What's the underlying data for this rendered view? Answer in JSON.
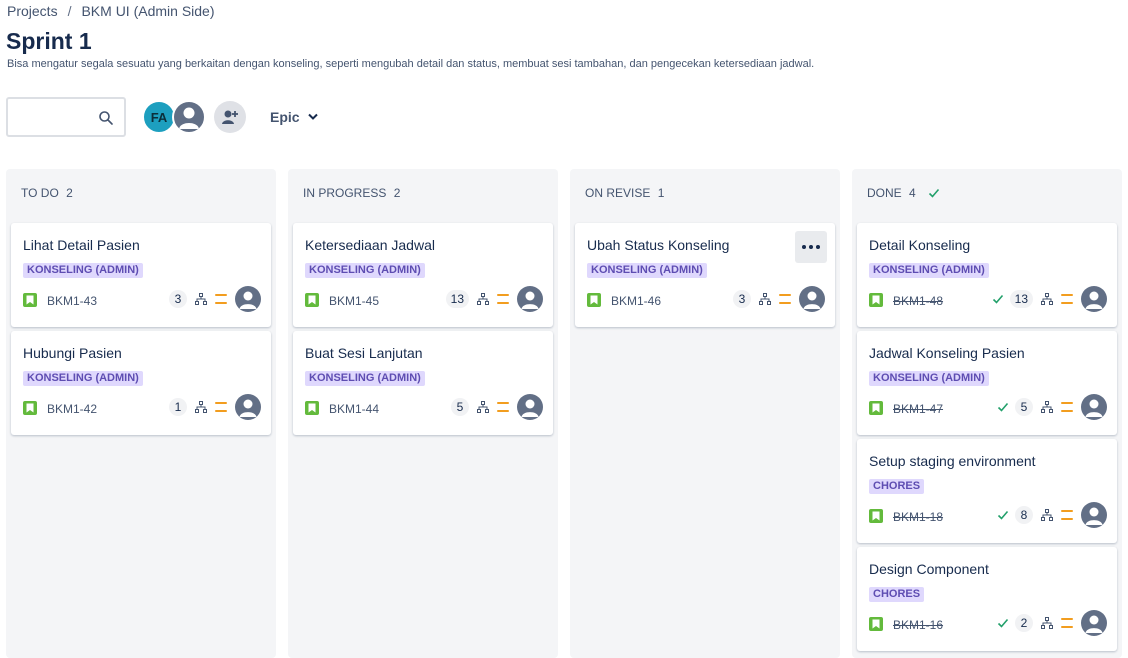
{
  "breadcrumb": {
    "projects": "Projects",
    "separator": "/",
    "project": "BKM UI (Admin Side)"
  },
  "page": {
    "title": "Sprint 1",
    "description": "Bisa mengatur segala sesuatu yang berkaitan dengan konseling, seperti mengubah detail dan status, membuat sesi tambahan, dan pengecekan ketersediaan jadwal."
  },
  "toolbar": {
    "search": {
      "value": "",
      "placeholder": ""
    },
    "avatar_initials": "FA",
    "epic_label": "Epic"
  },
  "colors": {
    "story": "#63ba3c",
    "tag_bg": "#dfd8fd",
    "tag_text": "#5e4db2",
    "priority_medium": "#f29d1f",
    "done_check": "#22a06b"
  },
  "columns": [
    {
      "name": "TO DO",
      "count": "2",
      "cards": [
        {
          "title": "Lihat Detail Pasien",
          "tag": "KONSELING (ADMIN)",
          "key": "BKM1-43",
          "points": "3",
          "done": false
        },
        {
          "title": "Hubungi Pasien",
          "tag": "KONSELING (ADMIN)",
          "key": "BKM1-42",
          "points": "1",
          "done": false
        }
      ]
    },
    {
      "name": "IN PROGRESS",
      "count": "2",
      "cards": [
        {
          "title": "Ketersediaan Jadwal",
          "tag": "KONSELING (ADMIN)",
          "key": "BKM1-45",
          "points": "13",
          "done": false
        },
        {
          "title": "Buat Sesi Lanjutan",
          "tag": "KONSELING (ADMIN)",
          "key": "BKM1-44",
          "points": "5",
          "done": false
        }
      ]
    },
    {
      "name": "ON REVISE",
      "count": "1",
      "cards": [
        {
          "title": "Ubah Status Konseling",
          "tag": "KONSELING (ADMIN)",
          "key": "BKM1-46",
          "points": "3",
          "done": false
        }
      ]
    },
    {
      "name": "DONE",
      "count": "4",
      "cards": [
        {
          "title": "Detail Konseling",
          "tag": "KONSELING (ADMIN)",
          "key": "BKM1-48",
          "points": "13",
          "done": true
        },
        {
          "title": "Jadwal Konseling Pasien",
          "tag": "KONSELING (ADMIN)",
          "key": "BKM1-47",
          "points": "5",
          "done": true
        },
        {
          "title": "Setup staging environment",
          "tag": "CHORES",
          "key": "BKM1-18",
          "points": "8",
          "done": true
        },
        {
          "title": "Design Component",
          "tag": "CHORES",
          "key": "BKM1-16",
          "points": "2",
          "done": true
        }
      ]
    }
  ]
}
